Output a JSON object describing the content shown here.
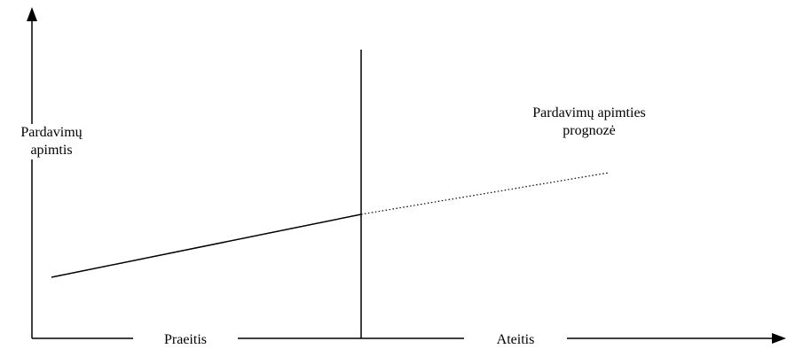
{
  "diagram": {
    "y_axis_label": {
      "line1": "Pardavimų",
      "line2": "apimtis"
    },
    "x_axis_segments": {
      "past": "Praeitis",
      "future": "Ateitis"
    },
    "forecast_label": {
      "line1": "Pardavimų apimties",
      "line2": "prognozė"
    },
    "line_color": "#000000"
  }
}
